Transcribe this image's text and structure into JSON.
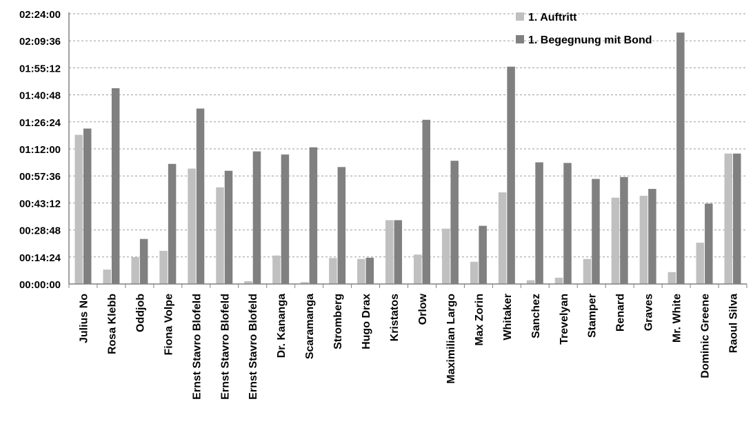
{
  "chart_data": {
    "type": "bar",
    "title": "",
    "xlabel": "",
    "ylabel": "",
    "y_unit": "h:mm:ss",
    "ylim": [
      "00:00:00",
      "02:24:00"
    ],
    "yticks": [
      "00:00:00",
      "00:14:24",
      "00:28:48",
      "00:43:12",
      "00:57:36",
      "01:12:00",
      "01:26:24",
      "01:40:48",
      "01:55:12",
      "02:09:36",
      "02:24:00"
    ],
    "grid": true,
    "legend_position": "top-right",
    "categories": [
      "Julius No",
      "Rosa Klebb",
      "Oddjob",
      "Fiona Volpe",
      "Ernst Stavro Blofeld",
      "Ernst Stavro Blofeld",
      "Ernst Stavro Blofeld",
      "Dr. Kananga",
      "Scaramanga",
      "Stromberg",
      "Hugo Drax",
      "Kristatos",
      "Orlow",
      "Maximilian Largo",
      "Max Zorin",
      "Whitaker",
      "Sanchez",
      "Trevelyan",
      "Stamper",
      "Renard",
      "Graves",
      "Mr. White",
      "Dominic Greene",
      "Raoul Silva"
    ],
    "series": [
      {
        "name": "1. Auftritt",
        "color": "#c0c0c0",
        "values": [
          "01:19:30",
          "00:07:40",
          "00:14:20",
          "00:17:40",
          "01:01:30",
          "00:51:30",
          "00:01:30",
          "00:15:10",
          "00:01:00",
          "00:13:50",
          "00:13:20",
          "00:34:00",
          "00:15:40",
          "00:29:30",
          "00:11:50",
          "00:48:50",
          "00:02:00",
          "00:03:20",
          "00:13:20",
          "00:46:00",
          "00:47:00",
          "00:06:20",
          "00:22:00",
          "01:09:30"
        ]
      },
      {
        "name": "1. Begegnung mit Bond",
        "color": "#808080",
        "values": [
          "01:22:50",
          "01:44:20",
          "00:24:00",
          "01:04:00",
          "01:33:30",
          "01:00:20",
          "01:10:40",
          "01:09:00",
          "01:12:50",
          "01:02:20",
          "00:14:00",
          "00:34:00",
          "01:27:30",
          "01:05:40",
          "00:31:00",
          "01:55:50",
          "01:04:50",
          "01:04:30",
          "00:56:00",
          "00:57:00",
          "00:50:40",
          "02:14:00",
          "00:42:50",
          "01:09:30"
        ]
      }
    ]
  }
}
